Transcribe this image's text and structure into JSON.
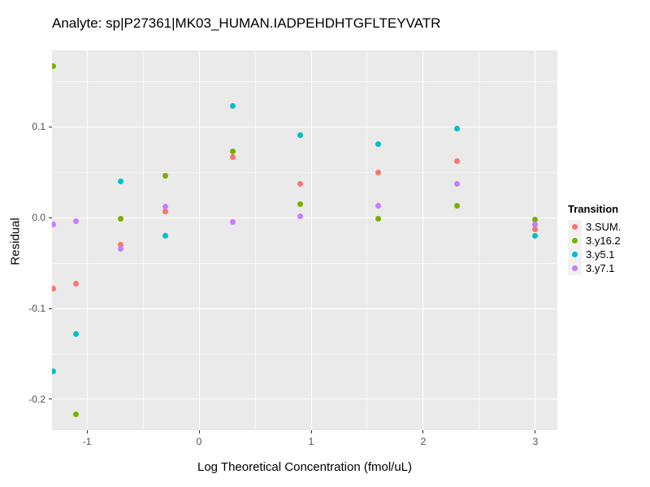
{
  "title": "Analyte: sp|P27361|MK03_HUMAN.IADPEHDHTGFLTEYVATR",
  "chart_data": {
    "type": "scatter",
    "title": "Analyte: sp|P27361|MK03_HUMAN.IADPEHDHTGFLTEYVATR",
    "xlabel": "Log Theoretical Concentration (fmol/uL)",
    "ylabel": "Residual",
    "legend_title": "Transition",
    "legend_position": "right",
    "grid": true,
    "panel_bg": "#EAEAEA",
    "grid_color": "#FFFFFF",
    "tick_label_color": "#4D4D4D",
    "xlim": [
      -1.312,
      3.196
    ],
    "ylim": [
      -0.234,
      0.1845
    ],
    "x_major_ticks": [
      -1,
      0,
      1,
      2,
      3
    ],
    "x_tick_labels": [
      "-1",
      "0",
      "1",
      "2",
      "3"
    ],
    "x_minor_ticks": [
      -0.5,
      0.5,
      1.5,
      2.5
    ],
    "y_major_ticks": [
      0.1,
      0.0,
      -0.1,
      -0.2
    ],
    "y_tick_labels": [
      "0.1",
      "0.0",
      "-0.1",
      "-0.2"
    ],
    "y_minor_ticks": [
      0.15,
      0.05,
      -0.05,
      -0.15
    ],
    "x": [
      -1.3,
      -1.1,
      -0.7,
      -0.3,
      0.3,
      0.9,
      1.6,
      2.3,
      3.0
    ],
    "series": [
      {
        "name": "3.SUM.",
        "color": "#F8766D",
        "values": [
          -0.078,
          -0.073,
          -0.03,
          0.007,
          0.067,
          0.037,
          0.05,
          0.062,
          -0.013
        ]
      },
      {
        "name": "3.y16.2",
        "color": "#7CAE00",
        "values": [
          0.167,
          -0.217,
          -0.001,
          0.046,
          0.073,
          0.015,
          -0.001,
          0.013,
          -0.002
        ]
      },
      {
        "name": "3.y5.1",
        "color": "#00BFC4",
        "values": [
          -0.169,
          -0.128,
          0.04,
          -0.02,
          0.123,
          0.091,
          0.081,
          0.098,
          -0.02
        ]
      },
      {
        "name": "3.y7.1",
        "color": "#C77CFF",
        "values": [
          -0.007,
          -0.004,
          -0.034,
          0.012,
          -0.005,
          0.002,
          0.013,
          0.037,
          -0.007
        ]
      }
    ]
  }
}
